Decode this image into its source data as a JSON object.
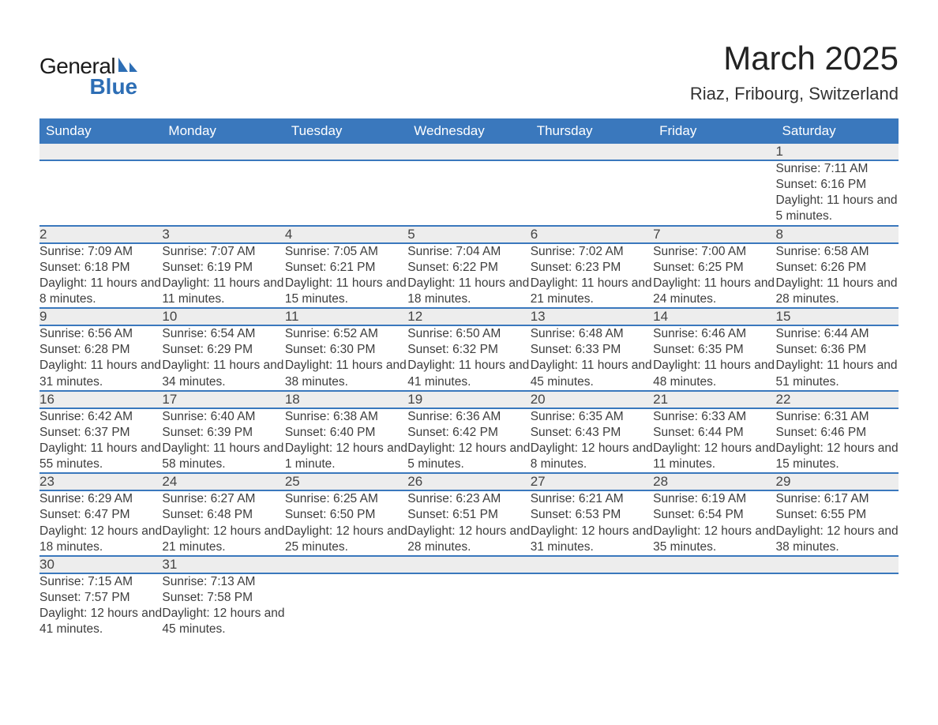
{
  "logo": {
    "word1": "General",
    "word2": "Blue"
  },
  "title": "March 2025",
  "location": "Riaz, Fribourg, Switzerland",
  "colors": {
    "header_bg": "#3a78bd",
    "header_text": "#ffffff",
    "daynum_bg": "#ededed",
    "row_divider": "#3a78bd",
    "body_text": "#3d3d3d",
    "logo_blue": "#2d6eb5",
    "page_bg": "#ffffff"
  },
  "layout": {
    "columns": 7,
    "fonts": {
      "title_pt": 42,
      "location_pt": 22,
      "header_pt": 17,
      "daynum_pt": 17,
      "body_pt": 15.5
    }
  },
  "weekdays": [
    "Sunday",
    "Monday",
    "Tuesday",
    "Wednesday",
    "Thursday",
    "Friday",
    "Saturday"
  ],
  "weeks": [
    {
      "nums": [
        "",
        "",
        "",
        "",
        "",
        "",
        "1"
      ],
      "details": [
        [],
        [],
        [],
        [],
        [],
        [],
        [
          "Sunrise: 7:11 AM",
          "Sunset: 6:16 PM",
          "Daylight: 11 hours and 5 minutes."
        ]
      ]
    },
    {
      "nums": [
        "2",
        "3",
        "4",
        "5",
        "6",
        "7",
        "8"
      ],
      "details": [
        [
          "Sunrise: 7:09 AM",
          "Sunset: 6:18 PM",
          "Daylight: 11 hours and 8 minutes."
        ],
        [
          "Sunrise: 7:07 AM",
          "Sunset: 6:19 PM",
          "Daylight: 11 hours and 11 minutes."
        ],
        [
          "Sunrise: 7:05 AM",
          "Sunset: 6:21 PM",
          "Daylight: 11 hours and 15 minutes."
        ],
        [
          "Sunrise: 7:04 AM",
          "Sunset: 6:22 PM",
          "Daylight: 11 hours and 18 minutes."
        ],
        [
          "Sunrise: 7:02 AM",
          "Sunset: 6:23 PM",
          "Daylight: 11 hours and 21 minutes."
        ],
        [
          "Sunrise: 7:00 AM",
          "Sunset: 6:25 PM",
          "Daylight: 11 hours and 24 minutes."
        ],
        [
          "Sunrise: 6:58 AM",
          "Sunset: 6:26 PM",
          "Daylight: 11 hours and 28 minutes."
        ]
      ]
    },
    {
      "nums": [
        "9",
        "10",
        "11",
        "12",
        "13",
        "14",
        "15"
      ],
      "details": [
        [
          "Sunrise: 6:56 AM",
          "Sunset: 6:28 PM",
          "Daylight: 11 hours and 31 minutes."
        ],
        [
          "Sunrise: 6:54 AM",
          "Sunset: 6:29 PM",
          "Daylight: 11 hours and 34 minutes."
        ],
        [
          "Sunrise: 6:52 AM",
          "Sunset: 6:30 PM",
          "Daylight: 11 hours and 38 minutes."
        ],
        [
          "Sunrise: 6:50 AM",
          "Sunset: 6:32 PM",
          "Daylight: 11 hours and 41 minutes."
        ],
        [
          "Sunrise: 6:48 AM",
          "Sunset: 6:33 PM",
          "Daylight: 11 hours and 45 minutes."
        ],
        [
          "Sunrise: 6:46 AM",
          "Sunset: 6:35 PM",
          "Daylight: 11 hours and 48 minutes."
        ],
        [
          "Sunrise: 6:44 AM",
          "Sunset: 6:36 PM",
          "Daylight: 11 hours and 51 minutes."
        ]
      ]
    },
    {
      "nums": [
        "16",
        "17",
        "18",
        "19",
        "20",
        "21",
        "22"
      ],
      "details": [
        [
          "Sunrise: 6:42 AM",
          "Sunset: 6:37 PM",
          "Daylight: 11 hours and 55 minutes."
        ],
        [
          "Sunrise: 6:40 AM",
          "Sunset: 6:39 PM",
          "Daylight: 11 hours and 58 minutes."
        ],
        [
          "Sunrise: 6:38 AM",
          "Sunset: 6:40 PM",
          "Daylight: 12 hours and 1 minute."
        ],
        [
          "Sunrise: 6:36 AM",
          "Sunset: 6:42 PM",
          "Daylight: 12 hours and 5 minutes."
        ],
        [
          "Sunrise: 6:35 AM",
          "Sunset: 6:43 PM",
          "Daylight: 12 hours and 8 minutes."
        ],
        [
          "Sunrise: 6:33 AM",
          "Sunset: 6:44 PM",
          "Daylight: 12 hours and 11 minutes."
        ],
        [
          "Sunrise: 6:31 AM",
          "Sunset: 6:46 PM",
          "Daylight: 12 hours and 15 minutes."
        ]
      ]
    },
    {
      "nums": [
        "23",
        "24",
        "25",
        "26",
        "27",
        "28",
        "29"
      ],
      "details": [
        [
          "Sunrise: 6:29 AM",
          "Sunset: 6:47 PM",
          "Daylight: 12 hours and 18 minutes."
        ],
        [
          "Sunrise: 6:27 AM",
          "Sunset: 6:48 PM",
          "Daylight: 12 hours and 21 minutes."
        ],
        [
          "Sunrise: 6:25 AM",
          "Sunset: 6:50 PM",
          "Daylight: 12 hours and 25 minutes."
        ],
        [
          "Sunrise: 6:23 AM",
          "Sunset: 6:51 PM",
          "Daylight: 12 hours and 28 minutes."
        ],
        [
          "Sunrise: 6:21 AM",
          "Sunset: 6:53 PM",
          "Daylight: 12 hours and 31 minutes."
        ],
        [
          "Sunrise: 6:19 AM",
          "Sunset: 6:54 PM",
          "Daylight: 12 hours and 35 minutes."
        ],
        [
          "Sunrise: 6:17 AM",
          "Sunset: 6:55 PM",
          "Daylight: 12 hours and 38 minutes."
        ]
      ]
    },
    {
      "nums": [
        "30",
        "31",
        "",
        "",
        "",
        "",
        ""
      ],
      "details": [
        [
          "Sunrise: 7:15 AM",
          "Sunset: 7:57 PM",
          "Daylight: 12 hours and 41 minutes."
        ],
        [
          "Sunrise: 7:13 AM",
          "Sunset: 7:58 PM",
          "Daylight: 12 hours and 45 minutes."
        ],
        [],
        [],
        [],
        [],
        []
      ]
    }
  ]
}
